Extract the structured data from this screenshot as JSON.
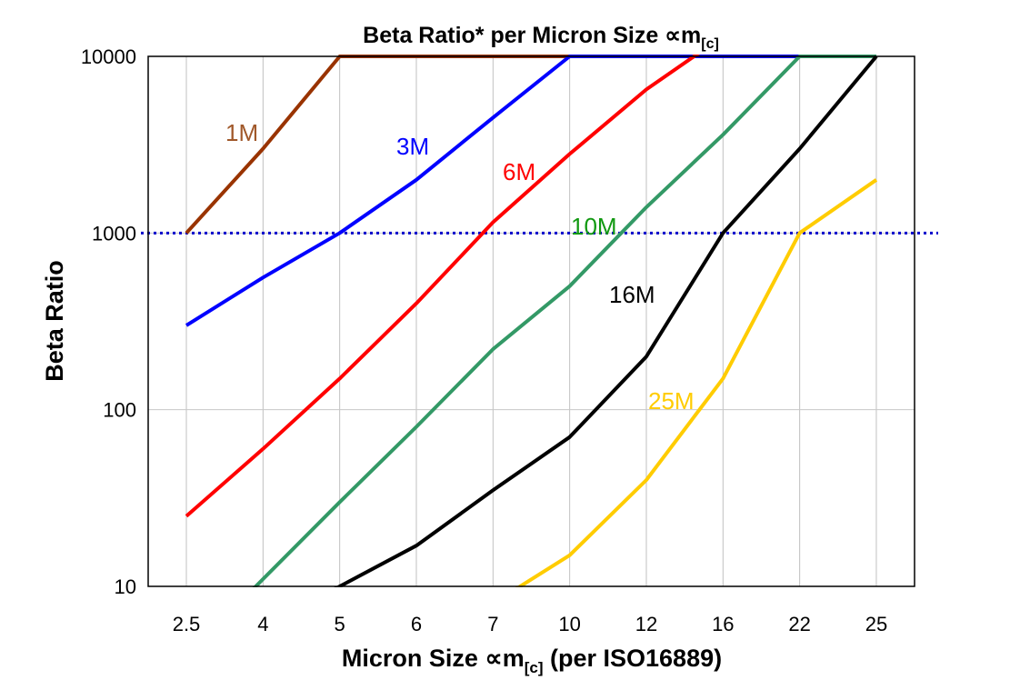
{
  "chart_data": {
    "type": "line",
    "title": "Beta Ratio* per Micron Size ∝m",
    "title_subscript": "[c]",
    "xlabel": "Micron Size ∝m",
    "xlabel_subscript": "[c]",
    "xlabel_suffix": " (per ISO16889)",
    "ylabel": "Beta Ratio",
    "y_scale": "log",
    "ylim": [
      10,
      10000
    ],
    "yticks": [
      "10",
      "100",
      "1000",
      "10000"
    ],
    "categories": [
      "2.5",
      "4",
      "5",
      "6",
      "7",
      "10",
      "12",
      "16",
      "22",
      "25"
    ],
    "grid": {
      "x": true,
      "y": true
    },
    "reference_line": {
      "value": 1000,
      "style": "dotted",
      "color": "#0000cc"
    },
    "series": [
      {
        "name": "1M",
        "color": "#993300",
        "label_color": "#a0582a",
        "values": [
          1000,
          3000,
          10000,
          10000,
          10000,
          10000,
          null,
          null,
          null,
          null
        ]
      },
      {
        "name": "3M",
        "color": "#0000ff",
        "label_color": "#0000ff",
        "values": [
          300,
          560,
          1000,
          2000,
          4500,
          10000,
          10000,
          10000,
          10000,
          null
        ]
      },
      {
        "name": "6M",
        "color": "#ff0000",
        "label_color": "#ff0000",
        "values": [
          25,
          60,
          150,
          400,
          1150,
          2800,
          6500,
          13000,
          null,
          null
        ]
      },
      {
        "name": "10M",
        "color": "#339966",
        "label_color": "#119911",
        "values": [
          4,
          11,
          30,
          80,
          220,
          500,
          1400,
          3600,
          10000,
          10000
        ]
      },
      {
        "name": "16M",
        "color": "#000000",
        "label_color": "#000000",
        "values": [
          null,
          6,
          10,
          17,
          35,
          70,
          200,
          1000,
          3000,
          10000
        ]
      },
      {
        "name": "25M",
        "color": "#ffcc00",
        "label_color": "#ffcc00",
        "values": [
          null,
          null,
          null,
          null,
          8,
          15,
          40,
          150,
          1000,
          2000
        ]
      }
    ]
  }
}
